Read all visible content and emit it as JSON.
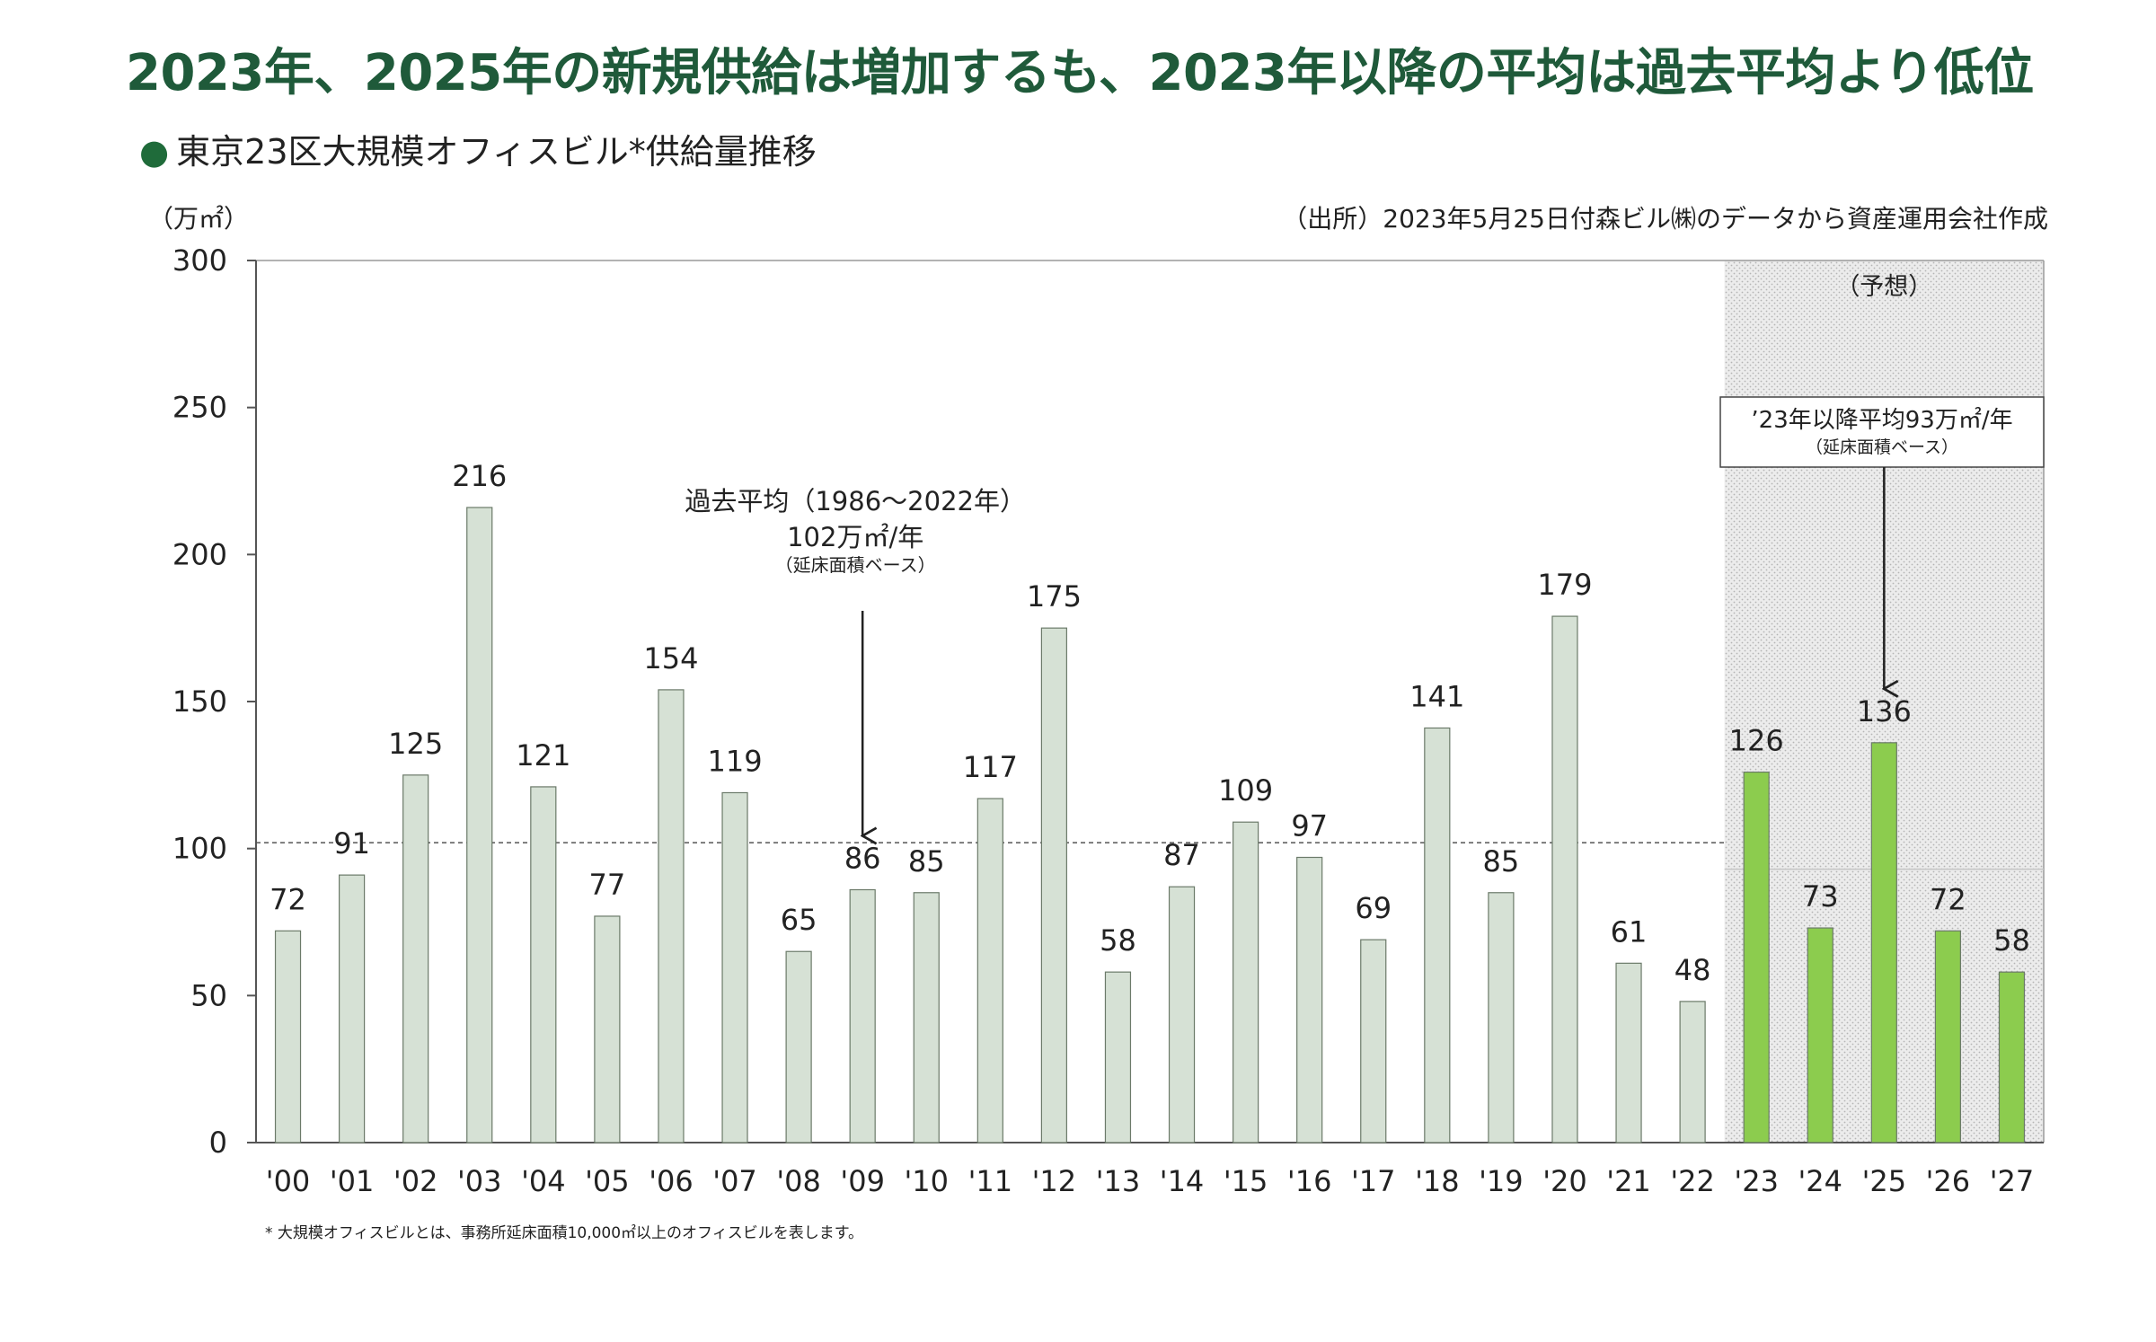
{
  "headline": "2023年、2025年の新規供給は増加するも、2023年以降の平均は過去平均より低位",
  "subtitle_marker": "●",
  "subtitle": "東京23区大規模オフィスビル*供給量推移",
  "unit": "（万㎡）",
  "source": "（出所）2023年5月25日付森ビル㈱のデータから資産運用会社作成",
  "footnote": "* 大規模オフィスビルとは、事務所延床面積10,000㎡以上のオフィスビルを表します。",
  "forecast_label": "（予想）",
  "annotation_past": {
    "line1": "過去平均（1986～2022年）",
    "line2": "102万㎡/年",
    "line3": "（延床面積ベース）"
  },
  "annotation_future": {
    "line1": "’23年以降平均93万㎡/年",
    "line2": "（延床面積ベース）"
  },
  "colors": {
    "historical_bar": "#d6e1d5",
    "forecast_bar": "#8ccc4e",
    "bar_stroke": "#6b7a69",
    "headline": "#1f5a3a",
    "forecast_bg": "#e9e9e9"
  },
  "chart_data": {
    "type": "bar",
    "categories": [
      "'00",
      "'01",
      "'02",
      "'03",
      "'04",
      "'05",
      "'06",
      "'07",
      "'08",
      "'09",
      "'10",
      "'11",
      "'12",
      "'13",
      "'14",
      "'15",
      "'16",
      "'17",
      "'18",
      "'19",
      "'20",
      "'21",
      "'22",
      "'23",
      "'24",
      "'25",
      "'26",
      "'27"
    ],
    "values": [
      72,
      91,
      125,
      216,
      121,
      77,
      154,
      119,
      65,
      86,
      85,
      117,
      175,
      58,
      87,
      109,
      97,
      69,
      141,
      85,
      179,
      61,
      48,
      126,
      73,
      136,
      72,
      58
    ],
    "forecast_from_index": 23,
    "ylim": [
      0,
      300
    ],
    "yticks": [
      0,
      50,
      100,
      150,
      200,
      250,
      300
    ],
    "historical_average": 102,
    "forecast_average": 93,
    "grid": false
  }
}
